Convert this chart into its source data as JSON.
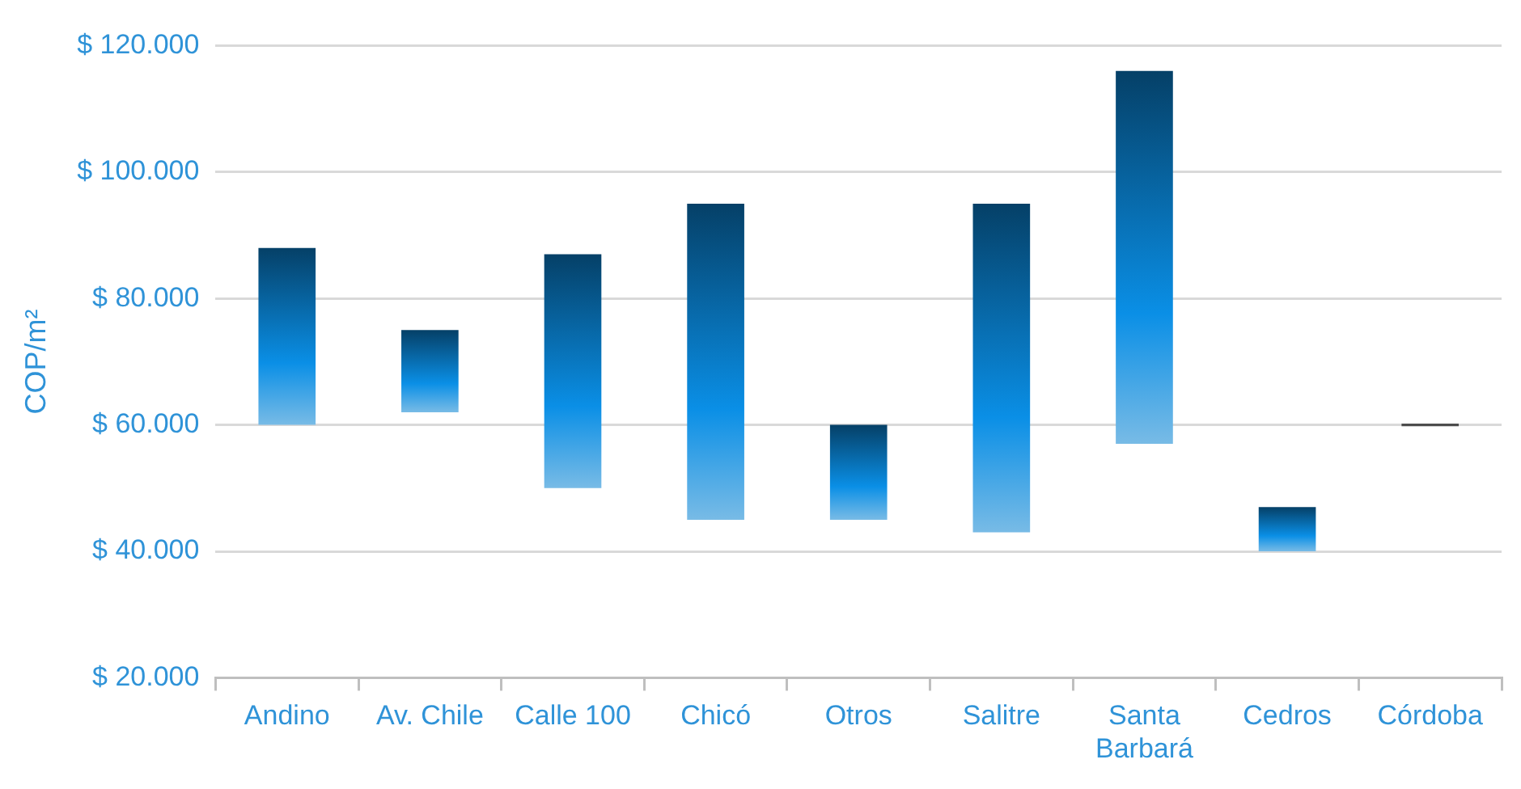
{
  "chart_data": {
    "type": "bar",
    "ylabel": "COP/m²",
    "categories": [
      "Andino",
      "Av. Chile",
      "Calle 100",
      "Chicó",
      "Otros",
      "Salitre",
      "Santa Barbará",
      "Cedros",
      "Córdoba"
    ],
    "base": [
      60000,
      62000,
      50000,
      45000,
      45000,
      43000,
      57000,
      40000,
      59800
    ],
    "values": [
      28000,
      13000,
      37000,
      50000,
      15000,
      52000,
      59000,
      7000,
      400
    ],
    "colors": [
      "#0a8fe6",
      "#0a8fe6",
      "#0a8fe6",
      "#0a8fe6",
      "#0a8fe6",
      "#0a8fe6",
      "#0a8fe6",
      "#0a8fe6",
      "#4d4d4d"
    ],
    "ylim": [
      20000,
      120000
    ],
    "yticks": [
      {
        "value": 20000,
        "label": "$ 20.000"
      },
      {
        "value": 40000,
        "label": "$ 40.000"
      },
      {
        "value": 60000,
        "label": "$ 60.000"
      },
      {
        "value": 80000,
        "label": "$ 80.000"
      },
      {
        "value": 100000,
        "label": "$ 100.000"
      },
      {
        "value": 120000,
        "label": "$ 120.000"
      }
    ],
    "grid": "y",
    "legend": false
  }
}
